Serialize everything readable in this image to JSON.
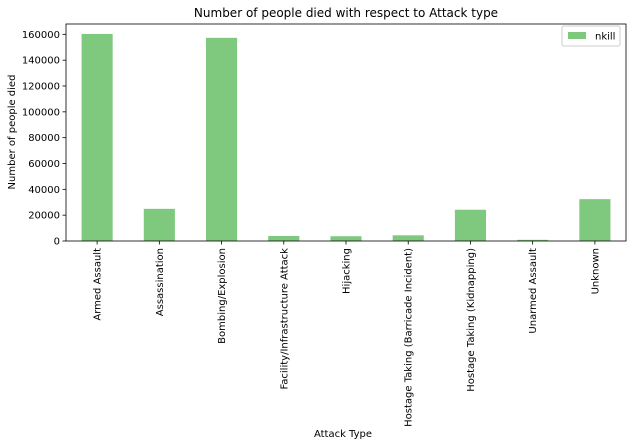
{
  "chart_data": {
    "type": "bar",
    "title": "Number of people died with respect to Attack type",
    "xlabel": "Attack Type",
    "ylabel": "Number of people died",
    "categories": [
      "Armed Assault",
      "Assassination",
      "Bombing/Explosion",
      "Facility/Infrastructure Attack",
      "Hijacking",
      "Hostage Taking (Barricade Incident)",
      "Hostage Taking (Kidnapping)",
      "Unarmed Assault",
      "Unknown"
    ],
    "series": [
      {
        "name": "nkill",
        "values": [
          160300,
          24900,
          157300,
          3900,
          3700,
          4400,
          24200,
          900,
          32400
        ]
      }
    ],
    "ylim": [
      0,
      168000
    ],
    "yticks": [
      0,
      20000,
      40000,
      60000,
      80000,
      100000,
      120000,
      140000,
      160000
    ],
    "bar_color": "#7fc97f",
    "legend_position": "top-right",
    "grid": false
  }
}
